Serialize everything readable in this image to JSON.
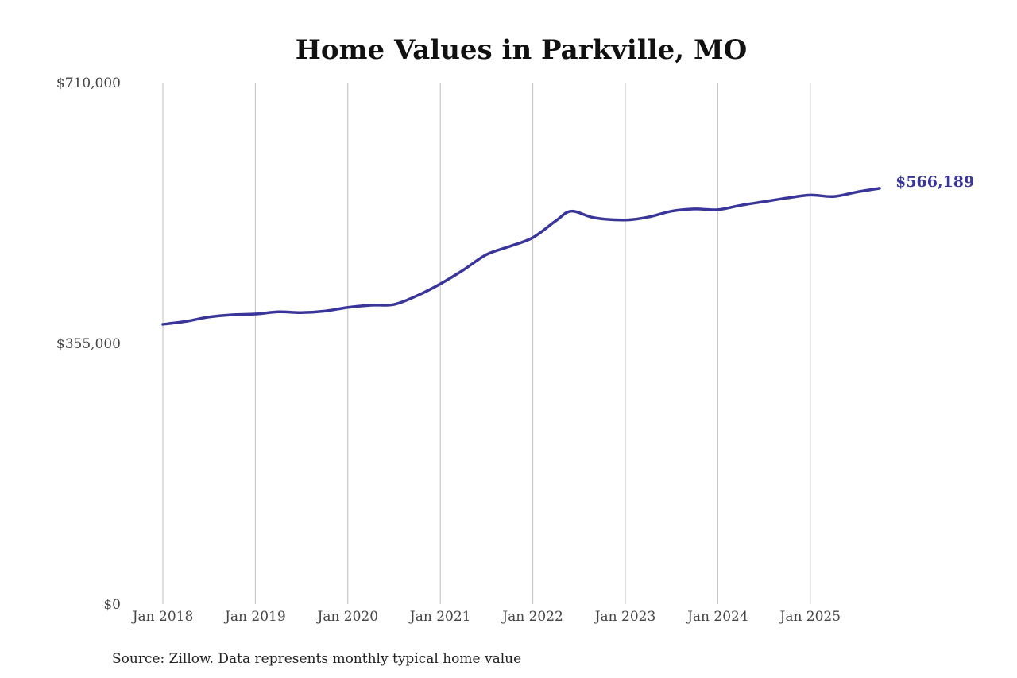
{
  "chart_data": {
    "type": "line",
    "title": "Home Values in Parkville, MO",
    "source": "Source: Zillow. Data represents monthly typical home value",
    "xlabel": "",
    "ylabel": "",
    "ylim": [
      0,
      710000
    ],
    "y_ticks": [
      "$0",
      "$355,000",
      "$710,000"
    ],
    "y_tick_values": [
      0,
      355000,
      710000
    ],
    "x_ticks": [
      "Jan 2018",
      "Jan 2019",
      "Jan 2020",
      "Jan 2021",
      "Jan 2022",
      "Jan 2023",
      "Jan 2024",
      "Jan 2025"
    ],
    "grid": "vertical",
    "line_color": "#3a3598",
    "end_label": "$566,189",
    "series": [
      {
        "x": [
          "2018-01",
          "2018-04",
          "2018-07",
          "2018-10",
          "2019-01",
          "2019-04",
          "2019-07",
          "2019-10",
          "2020-01",
          "2020-04",
          "2020-07",
          "2020-10",
          "2021-01",
          "2021-04",
          "2021-07",
          "2021-10",
          "2022-01",
          "2022-04",
          "2022-06",
          "2022-09",
          "2023-01",
          "2023-04",
          "2023-07",
          "2023-10",
          "2024-01",
          "2024-04",
          "2024-07",
          "2024-10",
          "2025-01",
          "2025-04",
          "2025-07",
          "2025-10"
        ],
        "values": [
          381000,
          385000,
          391000,
          394000,
          395000,
          398000,
          397000,
          399000,
          404000,
          407000,
          408000,
          420000,
          436000,
          455000,
          476000,
          487000,
          499000,
          522000,
          535000,
          526000,
          523000,
          527000,
          535000,
          538000,
          537000,
          543000,
          548000,
          553000,
          557000,
          555000,
          561000,
          566189
        ]
      }
    ]
  }
}
